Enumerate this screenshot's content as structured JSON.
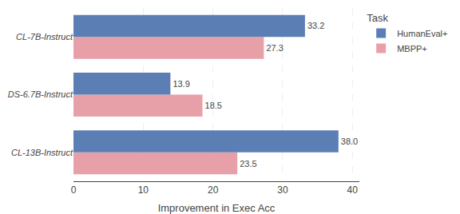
{
  "chart_data": {
    "type": "bar",
    "orientation": "horizontal",
    "categories": [
      "CL-13B-Instruct",
      "DS-6.7B-Instruct",
      "CL-7B-Instruct"
    ],
    "series": [
      {
        "name": "HumanEval+",
        "color": "#5b7fb5",
        "values": [
          38.0,
          13.9,
          33.2
        ],
        "value_labels": [
          "38.0",
          "13.9",
          "33.2"
        ]
      },
      {
        "name": "MBPP+",
        "color": "#e8a0a8",
        "values": [
          23.5,
          18.5,
          27.3
        ],
        "value_labels": [
          "23.5",
          "18.5",
          "27.3"
        ]
      }
    ],
    "xlabel": "Improvement in Exec Acc",
    "xlim": [
      0,
      41
    ],
    "xticks": [
      0,
      10,
      20,
      30,
      40
    ],
    "legend_title": "Task",
    "legend": "right",
    "grid": true,
    "data_labels": true
  }
}
